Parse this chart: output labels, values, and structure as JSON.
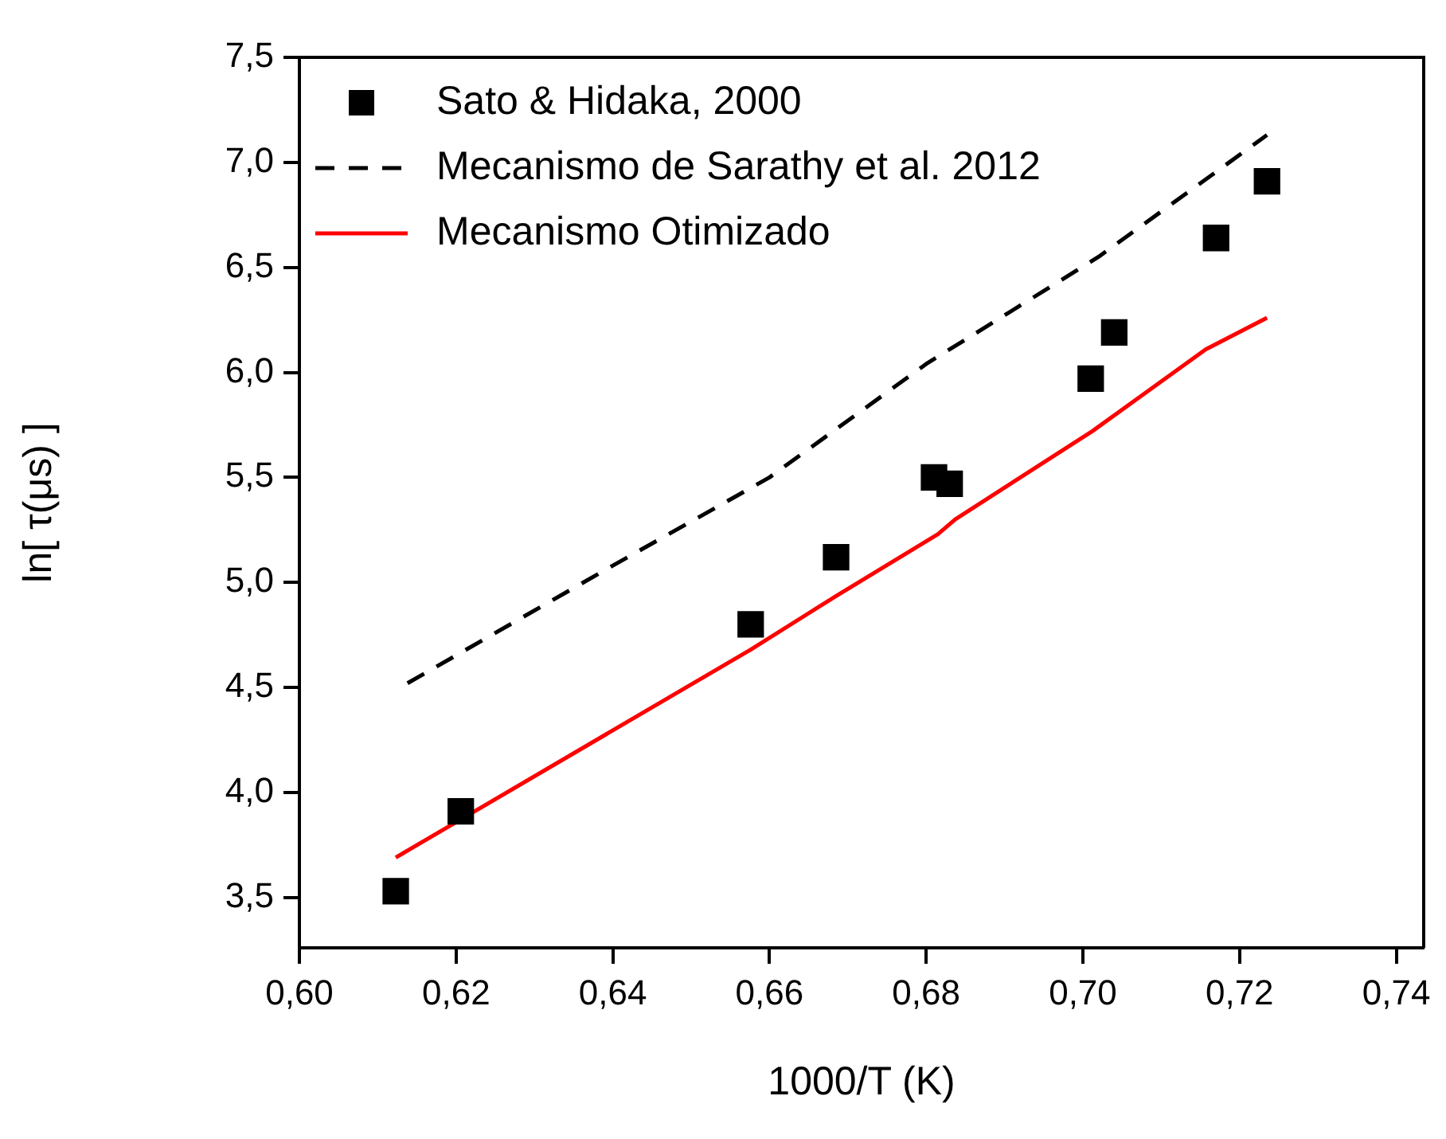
{
  "chart_data": {
    "type": "scatter",
    "xlabel": "1000/T (K)",
    "ylabel": "ln[ τ(μs) ]",
    "xlim": [
      0.6,
      0.7435
    ],
    "ylim": [
      3.26,
      7.5
    ],
    "xticks": [
      {
        "value": 0.6,
        "label": "0,60"
      },
      {
        "value": 0.62,
        "label": "0,62"
      },
      {
        "value": 0.64,
        "label": "0,64"
      },
      {
        "value": 0.66,
        "label": "0,66"
      },
      {
        "value": 0.68,
        "label": "0,68"
      },
      {
        "value": 0.7,
        "label": "0,70"
      },
      {
        "value": 0.72,
        "label": "0,72"
      },
      {
        "value": 0.74,
        "label": "0,74"
      }
    ],
    "yticks": [
      {
        "value": 3.5,
        "label": "3,5"
      },
      {
        "value": 4,
        "label": "4,0"
      },
      {
        "value": 4.5,
        "label": "4,5"
      },
      {
        "value": 5,
        "label": "5,0"
      },
      {
        "value": 5.5,
        "label": "5,5"
      },
      {
        "value": 6,
        "label": "6,0"
      },
      {
        "value": 6.5,
        "label": "6,5"
      },
      {
        "value": 7,
        "label": "7,0"
      },
      {
        "value": 7.5,
        "label": "7,5"
      }
    ],
    "grid": false,
    "legend": "top left",
    "series": [
      {
        "name": "Sato & Hidaka, 2000",
        "marker": "square",
        "color": "#000000",
        "x": [
          0.6123,
          0.6206,
          0.6576,
          0.6685,
          0.681,
          0.683,
          0.701,
          0.704,
          0.717,
          0.7235
        ],
        "values": [
          3.53,
          3.91,
          4.8,
          5.12,
          5.5,
          5.47,
          5.97,
          6.19,
          6.64,
          6.91
        ]
      },
      {
        "name": "Mecanismo de Sarathy et al. 2012",
        "type": "line",
        "line_style": "dashed",
        "marker": "none",
        "color": "#000000",
        "x": [
          0.6138,
          0.64,
          0.66,
          0.68,
          0.702,
          0.7235
        ],
        "values": [
          4.52,
          5.08,
          5.5,
          6.04,
          6.55,
          7.13
        ]
      },
      {
        "name": "Mecanismo Otimizado",
        "type": "line",
        "line_style": "solid",
        "marker": "none",
        "color": "#ff0000",
        "x": [
          0.6123,
          0.6576,
          0.6687,
          0.6815,
          0.6837,
          0.7012,
          0.7157,
          0.7235
        ],
        "values": [
          3.69,
          4.68,
          4.94,
          5.23,
          5.3,
          5.72,
          6.11,
          6.26
        ]
      }
    ]
  }
}
